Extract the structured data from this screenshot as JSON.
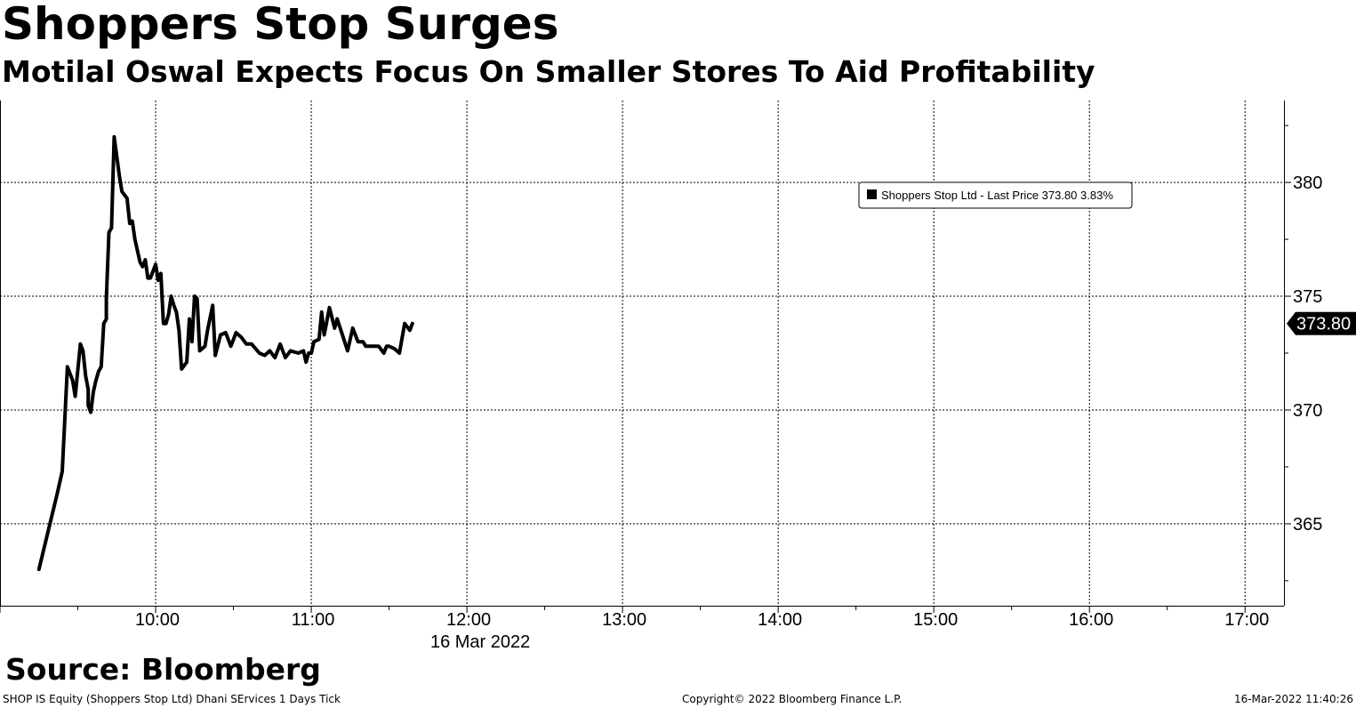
{
  "title": "Shoppers Stop Surges",
  "subtitle": "Motilal Oswal Expects Focus On Smaller Stores To Aid Profitability",
  "source": "Source: Bloomberg",
  "footer": {
    "left": "SHOP IS Equity (Shoppers Stop Ltd) Dhani SErvices 1 Days  Tick",
    "center": "Copyright© 2022 Bloomberg Finance L.P.",
    "right": "16-Mar-2022 11:40:26"
  },
  "colors": {
    "line": "#000000",
    "grid": "#000000",
    "background": "#ffffff"
  },
  "chart_data": {
    "type": "line",
    "date_label": "16 Mar 2022",
    "xlim": [
      "09:00",
      "17:15"
    ],
    "ylim": [
      361.4,
      383.6
    ],
    "x_ticks": [
      "10:00",
      "11:00",
      "12:00",
      "13:00",
      "14:00",
      "15:00",
      "16:00",
      "17:00"
    ],
    "y_ticks": [
      365,
      370,
      375,
      380
    ],
    "grid": true,
    "legend": {
      "position": "top-right",
      "text": "Shoppers Stop Ltd - Last Price 373.80  3.83%"
    },
    "last_price_label": "373.80",
    "series": [
      {
        "name": "Shoppers Stop Ltd - Last Price",
        "x": [
          "09:15",
          "09:22",
          "09:24",
          "09:26",
          "09:28",
          "09:29",
          "09:31",
          "09:32",
          "09:33",
          "09:34",
          "09:34",
          "09:35",
          "09:36",
          "09:37",
          "09:38",
          "09:39",
          "09:40",
          "09:41",
          "09:41",
          "09:42",
          "09:43",
          "09:44",
          "09:46",
          "09:47",
          "09:49",
          "09:50",
          "09:51",
          "09:52",
          "09:53",
          "09:54",
          "09:55",
          "09:56",
          "09:57",
          "09:58",
          "10:00",
          "10:01",
          "10:02",
          "10:03",
          "10:04",
          "10:05",
          "10:06",
          "10:07",
          "10:08",
          "10:09",
          "10:10",
          "10:12",
          "10:13",
          "10:14",
          "10:15",
          "10:16",
          "10:17",
          "10:18",
          "10:19",
          "10:20",
          "10:22",
          "10:23",
          "10:25",
          "10:27",
          "10:29",
          "10:31",
          "10:33",
          "10:35",
          "10:37",
          "10:40",
          "10:42",
          "10:44",
          "10:46",
          "10:48",
          "10:50",
          "10:52",
          "10:55",
          "10:57",
          "10:58",
          "10:59",
          "11:00",
          "11:01",
          "11:03",
          "11:04",
          "11:05",
          "11:07",
          "11:09",
          "11:10",
          "11:12",
          "11:14",
          "11:16",
          "11:18",
          "11:20",
          "11:21",
          "11:22",
          "11:24",
          "11:26",
          "11:28",
          "11:29",
          "11:30",
          "11:32",
          "11:34",
          "11:36",
          "11:38",
          "11:39"
        ],
        "values": [
          363.0,
          366.3,
          367.3,
          371.9,
          371.3,
          370.6,
          372.9,
          372.6,
          371.5,
          370.9,
          370.2,
          369.9,
          370.8,
          371.3,
          371.7,
          371.9,
          373.8,
          374.0,
          374.9,
          377.8,
          378.0,
          382.0,
          380.3,
          379.6,
          379.3,
          378.2,
          378.3,
          377.5,
          377.0,
          376.5,
          376.3,
          376.6,
          375.8,
          375.8,
          376.4,
          375.7,
          376.0,
          373.8,
          373.8,
          374.2,
          375.0,
          374.6,
          374.3,
          373.5,
          371.8,
          372.1,
          374.0,
          373.0,
          375.0,
          374.9,
          372.6,
          372.7,
          372.8,
          373.5,
          374.6,
          372.4,
          373.3,
          373.4,
          372.8,
          373.4,
          373.2,
          372.9,
          372.9,
          372.5,
          372.4,
          372.6,
          372.3,
          372.9,
          372.3,
          372.6,
          372.5,
          372.6,
          372.1,
          372.5,
          372.5,
          373.0,
          373.1,
          374.3,
          373.3,
          374.5,
          373.6,
          374.0,
          373.3,
          372.6,
          373.6,
          373.0,
          373.0,
          372.8,
          372.8,
          372.8,
          372.8,
          372.5,
          372.8,
          372.8,
          372.7,
          372.5,
          373.8,
          373.5,
          373.8
        ]
      }
    ]
  }
}
